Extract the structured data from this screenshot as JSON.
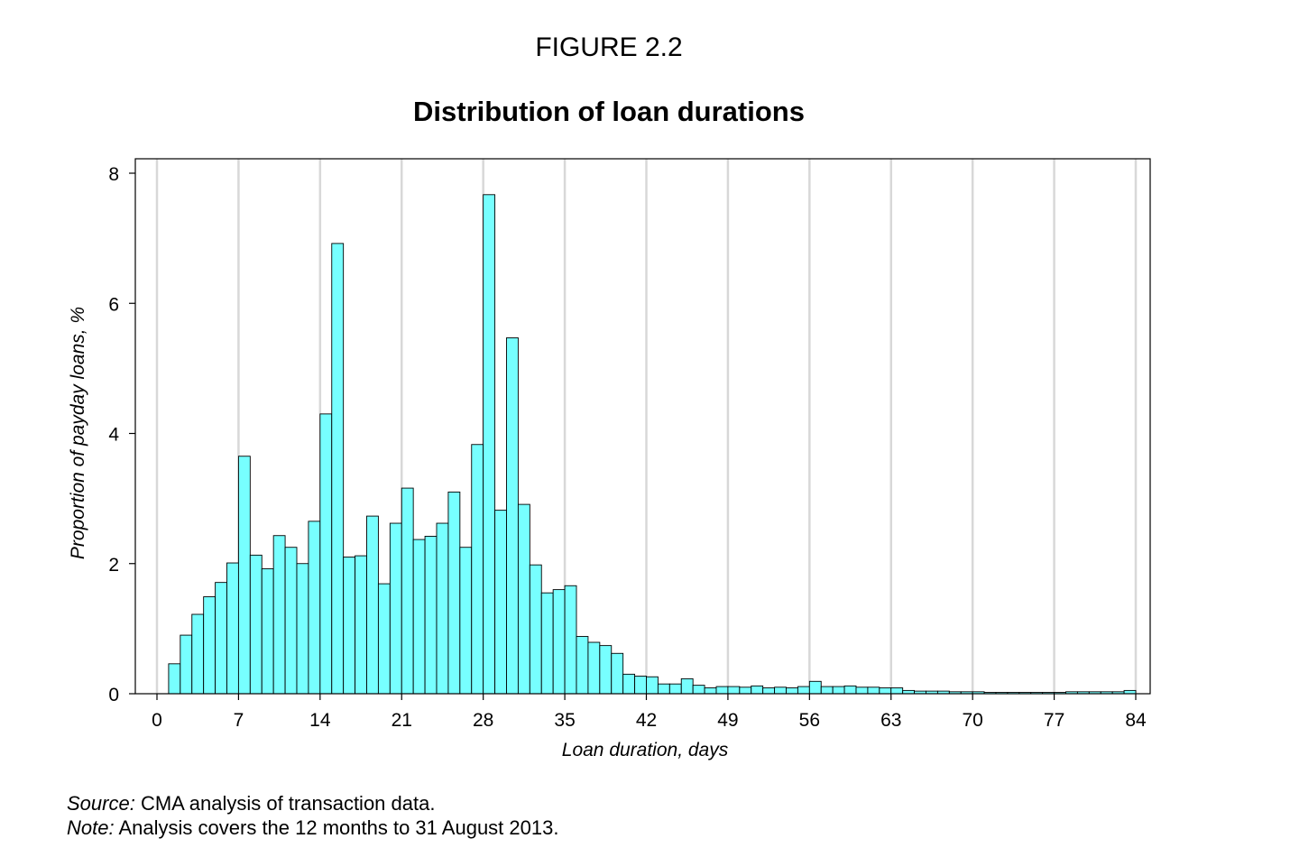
{
  "figure_label": "FIGURE 2.2",
  "footnotes": {
    "source_label": "Source:",
    "source_text": "CMA analysis of transaction data.",
    "note_label": "Note:",
    "note_text": "Analysis covers the 12 months to 31 August 2013."
  },
  "colors": {
    "bar_fill": "#77FFFF",
    "bar_stroke": "#000000",
    "grid": "#d8d8d8"
  },
  "chart_data": {
    "type": "bar",
    "title": "Distribution of loan durations",
    "xlabel": "Loan duration, days",
    "ylabel": "Proportion of payday loans, %",
    "xlim": [
      0,
      84
    ],
    "ylim": [
      0,
      8
    ],
    "xticks": [
      0,
      7,
      14,
      21,
      28,
      35,
      42,
      49,
      56,
      63,
      70,
      77,
      84
    ],
    "yticks": [
      0,
      2,
      4,
      6,
      8
    ],
    "grid": "vertical",
    "bin_width": 1,
    "x": [
      1,
      2,
      3,
      4,
      5,
      6,
      7,
      8,
      9,
      10,
      11,
      12,
      13,
      14,
      15,
      16,
      17,
      18,
      19,
      20,
      21,
      22,
      23,
      24,
      25,
      26,
      27,
      28,
      29,
      30,
      31,
      32,
      33,
      34,
      35,
      36,
      37,
      38,
      39,
      40,
      41,
      42,
      43,
      44,
      45,
      46,
      47,
      48,
      49,
      50,
      51,
      52,
      53,
      54,
      55,
      56,
      57,
      58,
      59,
      60,
      61,
      62,
      63,
      64,
      65,
      66,
      67,
      68,
      69,
      70,
      71,
      72,
      73,
      74,
      75,
      76,
      77,
      78,
      79,
      80,
      81,
      82,
      83
    ],
    "values": [
      0.46,
      0.9,
      1.22,
      1.49,
      1.71,
      2.01,
      3.65,
      2.13,
      1.92,
      2.43,
      2.25,
      2.0,
      2.65,
      4.3,
      6.92,
      2.1,
      2.12,
      2.73,
      1.69,
      2.62,
      3.16,
      2.37,
      2.42,
      2.62,
      3.1,
      2.25,
      3.83,
      7.67,
      2.82,
      5.47,
      2.91,
      1.98,
      1.55,
      1.6,
      1.66,
      0.88,
      0.79,
      0.74,
      0.62,
      0.3,
      0.27,
      0.26,
      0.15,
      0.15,
      0.23,
      0.13,
      0.09,
      0.11,
      0.11,
      0.1,
      0.12,
      0.09,
      0.1,
      0.09,
      0.11,
      0.19,
      0.11,
      0.11,
      0.12,
      0.1,
      0.1,
      0.09,
      0.09,
      0.05,
      0.04,
      0.04,
      0.04,
      0.03,
      0.03,
      0.03,
      0.02,
      0.02,
      0.02,
      0.02,
      0.02,
      0.02,
      0.02,
      0.03,
      0.03,
      0.03,
      0.03,
      0.03,
      0.05
    ]
  }
}
